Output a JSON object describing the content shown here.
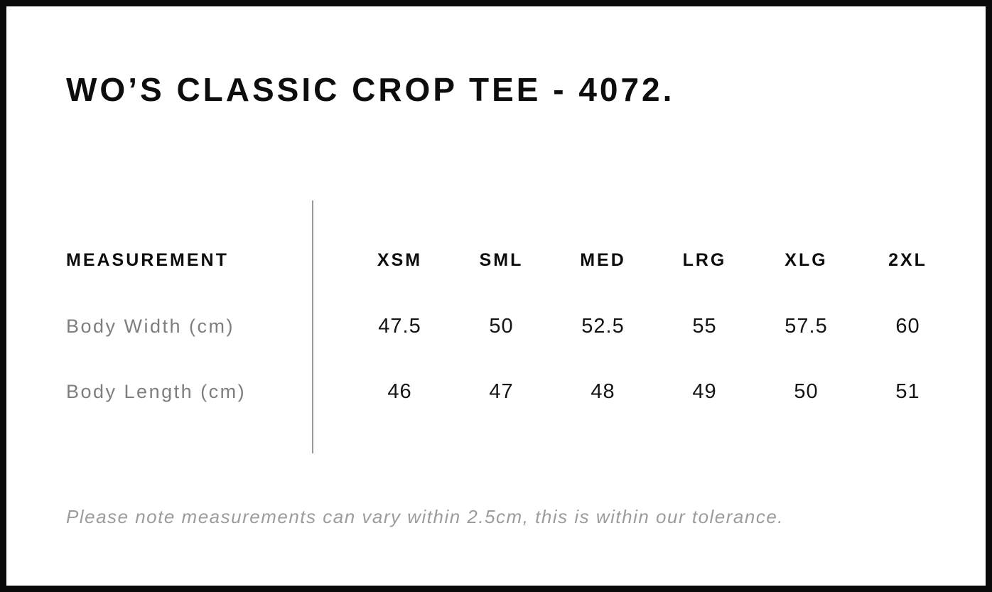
{
  "title": "WO’S CLASSIC CROP TEE - 4072.",
  "table": {
    "measurement_header": "MEASUREMENT",
    "size_columns": [
      "XSM",
      "SML",
      "MED",
      "LRG",
      "XLG",
      "2XL"
    ],
    "rows": [
      {
        "label": "Body Width (cm)",
        "values": [
          "47.5",
          "50",
          "52.5",
          "55",
          "57.5",
          "60"
        ]
      },
      {
        "label": "Body Length (cm)",
        "values": [
          "46",
          "47",
          "48",
          "49",
          "50",
          "51"
        ]
      }
    ]
  },
  "note": "Please note measurements can vary within 2.5cm, this is within our tolerance.",
  "colors": {
    "background": "#ffffff",
    "frame_border": "#0a0a0a",
    "heading_text": "#0d0d0d",
    "value_text": "#141414",
    "label_gray": "#7e7e7e",
    "note_gray": "#9c9c9c",
    "divider_gray": "#9b9b9b"
  },
  "chart_data": {
    "type": "table",
    "title": "WO’S CLASSIC CROP TEE - 4072.",
    "columns": [
      "MEASUREMENT",
      "XSM",
      "SML",
      "MED",
      "LRG",
      "XLG",
      "2XL"
    ],
    "rows": [
      [
        "Body Width (cm)",
        47.5,
        50,
        52.5,
        55,
        57.5,
        60
      ],
      [
        "Body Length (cm)",
        46,
        47,
        48,
        49,
        50,
        51
      ]
    ],
    "note": "Please note measurements can vary within 2.5cm, this is within our tolerance."
  }
}
